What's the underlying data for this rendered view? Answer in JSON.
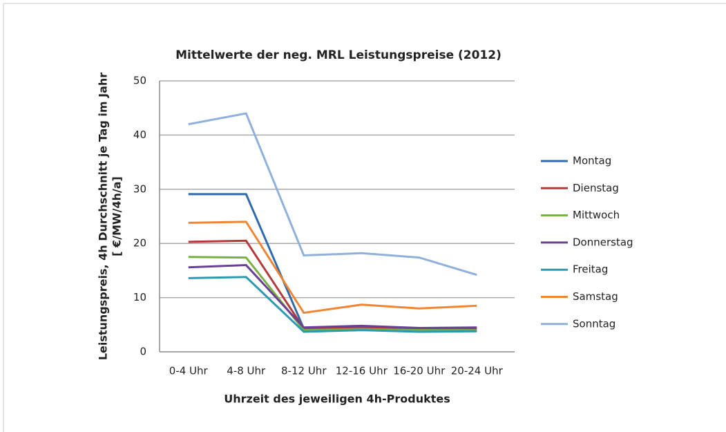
{
  "chart_data": {
    "type": "line",
    "title": "Mittelwerte der neg. MRL Leistungspreise (2012)",
    "x_label": "Uhrzeit des jeweiligen 4h-Produktes",
    "y_label": [
      "Leistungspreis, 4h Durchschnitt je Tag im Jahr",
      "[ €/MW/4h/a]"
    ],
    "categories": [
      "0-4 Uhr",
      "4-8 Uhr",
      "8-12 Uhr",
      "12-16 Uhr",
      "16-20 Uhr",
      "20-24 Uhr"
    ],
    "series": [
      {
        "name": "Montag",
        "color": "#2e6aad",
        "values": [
          29.1,
          29.1,
          4.3,
          4.5,
          4.2,
          4.3
        ]
      },
      {
        "name": "Dienstag",
        "color": "#b5383a",
        "values": [
          20.3,
          20.5,
          4.3,
          4.5,
          4.1,
          4.2
        ]
      },
      {
        "name": "Mittwoch",
        "color": "#79b040",
        "values": [
          17.5,
          17.4,
          4.0,
          4.2,
          4.0,
          4.0
        ]
      },
      {
        "name": "Donnerstag",
        "color": "#6a3f96",
        "values": [
          15.6,
          16.0,
          4.5,
          4.8,
          4.4,
          4.5
        ]
      },
      {
        "name": "Freitag",
        "color": "#2b9ab0",
        "values": [
          13.6,
          13.8,
          3.7,
          4.0,
          3.7,
          3.8
        ]
      },
      {
        "name": "Samstag",
        "color": "#ef8532",
        "values": [
          23.8,
          24.0,
          7.2,
          8.7,
          8.0,
          8.5
        ]
      },
      {
        "name": "Sonntag",
        "color": "#8fb0dc",
        "values": [
          42.0,
          44.0,
          17.8,
          18.2,
          17.4,
          14.2
        ]
      }
    ],
    "ylim": [
      0,
      50
    ],
    "yticks": [
      0,
      10,
      20,
      30,
      40,
      50
    ],
    "grid": true,
    "legend": "right"
  }
}
